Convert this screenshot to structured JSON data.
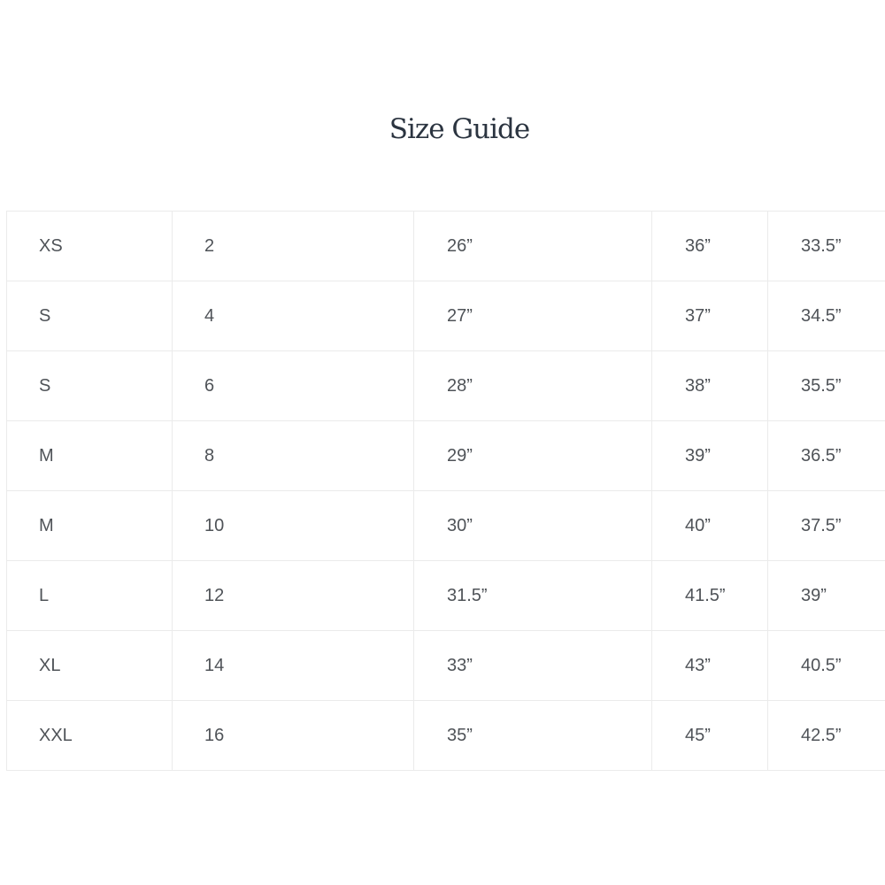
{
  "title": "Size Guide",
  "rows": [
    [
      "XS",
      "2",
      "26”",
      "36”",
      "33.5”"
    ],
    [
      "S",
      "4",
      "27”",
      "37”",
      "34.5”"
    ],
    [
      "S",
      "6",
      "28”",
      "38”",
      "35.5”"
    ],
    [
      "M",
      "8",
      "29”",
      "39”",
      "36.5”"
    ],
    [
      "M",
      "10",
      "30”",
      "40”",
      "37.5”"
    ],
    [
      "L",
      "12",
      "31.5”",
      "41.5”",
      "39”"
    ],
    [
      "XL",
      "14",
      "33”",
      "43”",
      "40.5”"
    ],
    [
      "XXL",
      "16",
      "35”",
      "45”",
      "42.5”"
    ]
  ]
}
